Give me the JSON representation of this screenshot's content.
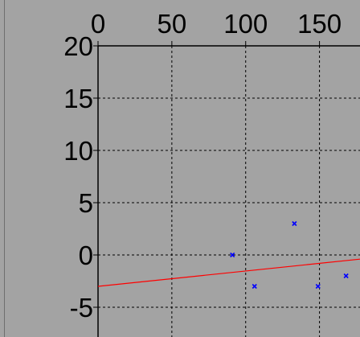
{
  "chart_data": {
    "type": "scatter",
    "x_ticks": [
      "0",
      "50",
      "100",
      "150"
    ],
    "y_ticks": [
      "20",
      "15",
      "10",
      "5",
      "0",
      "-5"
    ],
    "xlim": [
      0,
      178
    ],
    "ylim": [
      -7.5,
      20
    ],
    "grid": true,
    "points": [
      {
        "x": 91,
        "y": 0
      },
      {
        "x": 106,
        "y": -3
      },
      {
        "x": 133,
        "y": 3
      },
      {
        "x": 149,
        "y": -3
      },
      {
        "x": 168,
        "y": -2
      }
    ],
    "fit_line": {
      "x": [
        0,
        178
      ],
      "y": [
        -3.0,
        -0.4
      ]
    },
    "colors": {
      "background": "#a3a3a3",
      "axis": "#000000",
      "grid": "#000000",
      "points": "#0000ff",
      "fit_line": "#ff0000"
    }
  }
}
